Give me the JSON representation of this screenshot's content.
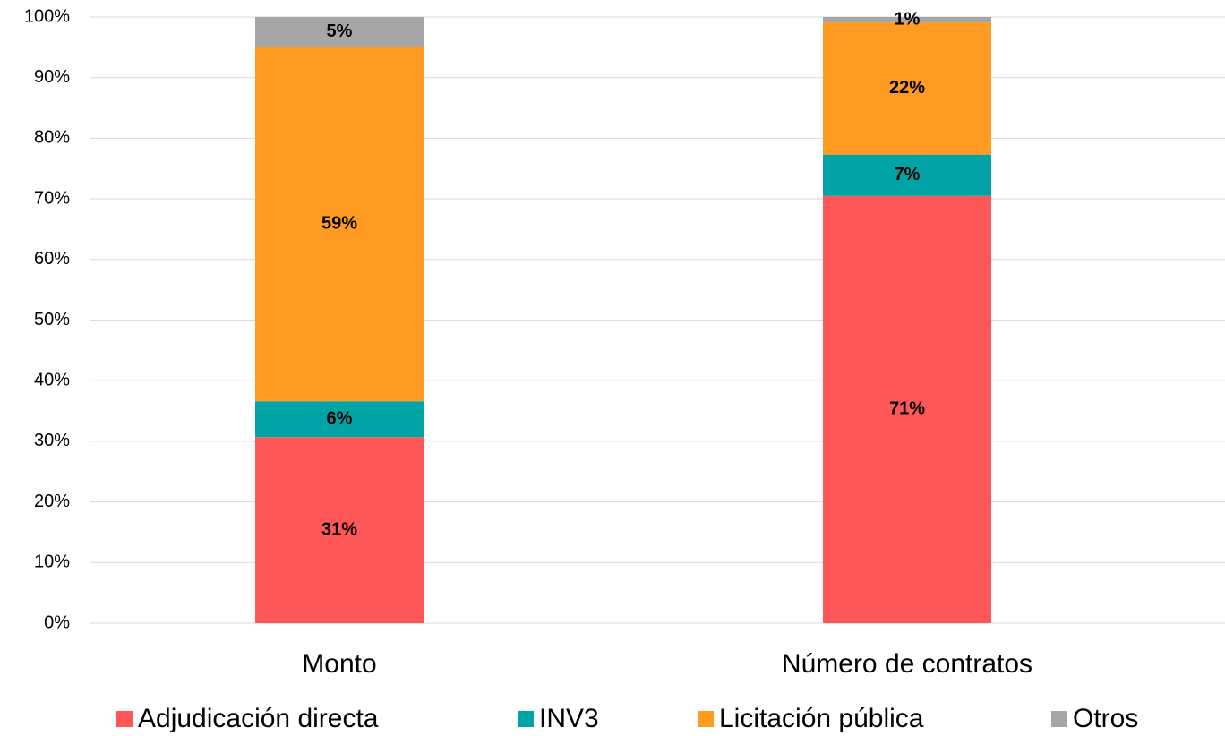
{
  "chart_data": {
    "type": "stacked_bar",
    "categories": [
      "Monto",
      "Número de contratos"
    ],
    "series": [
      {
        "name": "Adjudicación directa",
        "color": "#ff5757",
        "values": [
          30.7,
          70.5
        ],
        "value_labels": [
          "31%",
          "71%"
        ]
      },
      {
        "name": "INV3",
        "color": "#00a3a6",
        "values": [
          5.9,
          6.8
        ],
        "value_labels": [
          "6%",
          "7%"
        ]
      },
      {
        "name": "Licitación pública",
        "color": "#ff9a22",
        "values": [
          58.5,
          21.8
        ],
        "value_labels": [
          "59%",
          "22%"
        ]
      },
      {
        "name": "Otros",
        "color": "#a6a6a6",
        "values": [
          4.9,
          0.9
        ],
        "value_labels": [
          "5%",
          "1%"
        ]
      }
    ],
    "ylim": [
      0,
      100
    ],
    "yticks": [
      {
        "value": 0,
        "label": "0%"
      },
      {
        "value": 10,
        "label": "10%"
      },
      {
        "value": 20,
        "label": "20%"
      },
      {
        "value": 30,
        "label": "30%"
      },
      {
        "value": 40,
        "label": "40%"
      },
      {
        "value": 50,
        "label": "50%"
      },
      {
        "value": 60,
        "label": "60%"
      },
      {
        "value": 70,
        "label": "70%"
      },
      {
        "value": 80,
        "label": "80%"
      },
      {
        "value": 90,
        "label": "90%"
      },
      {
        "value": 100,
        "label": "100%"
      }
    ],
    "grid": true,
    "legend": "bottom"
  }
}
